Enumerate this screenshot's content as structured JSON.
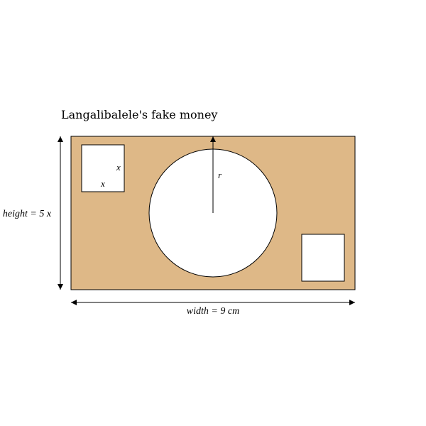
{
  "title": "Langalibalele's fake money",
  "labels": {
    "square_side_vertical": "x",
    "square_side_horizontal": "x",
    "radius": "r",
    "height": "height = 5 x",
    "width": "width = 9 cm"
  },
  "colors": {
    "banknote_fill": "#deb887",
    "cutout_fill": "#ffffff",
    "stroke": "#000000"
  }
}
